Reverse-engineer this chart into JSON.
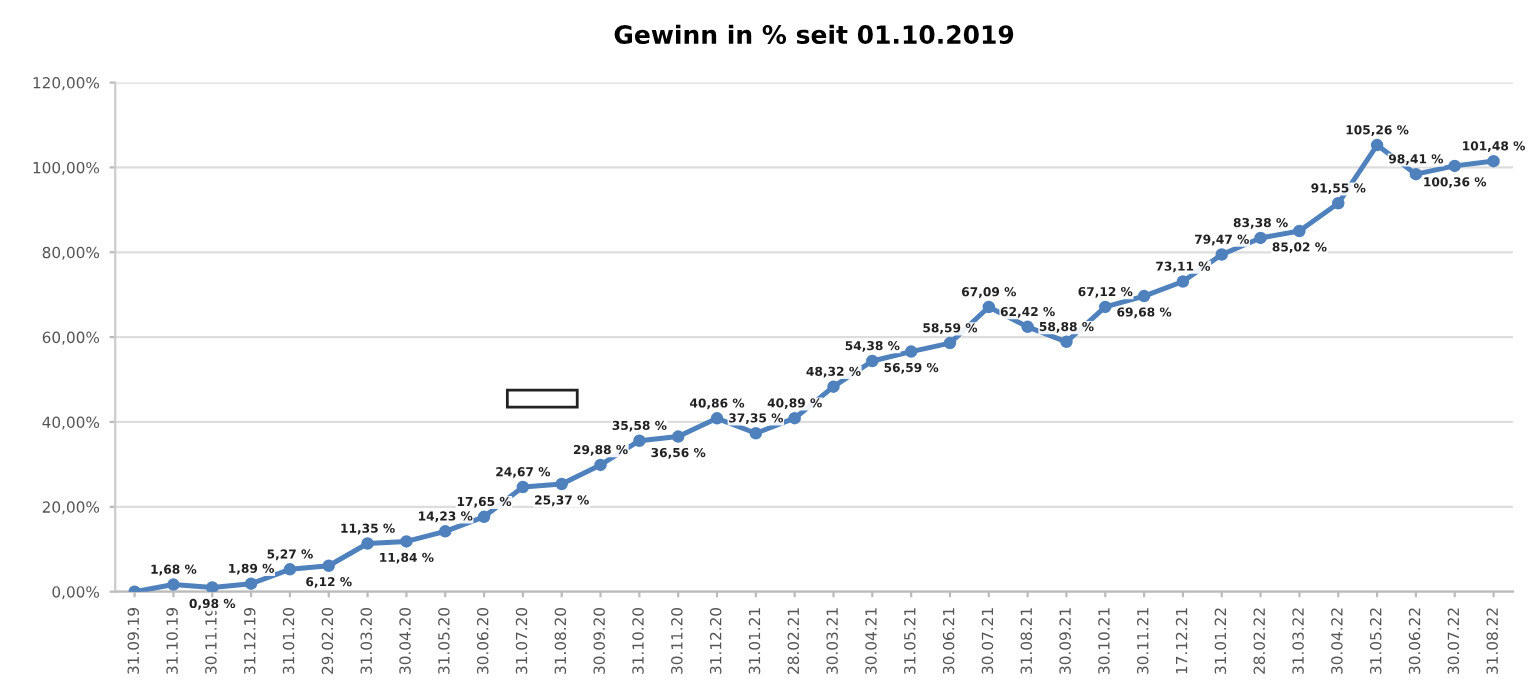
{
  "chart_data": {
    "type": "line",
    "title": "Gewinn in % seit 01.10.2019",
    "categories": [
      "31.09.19",
      "31.10.19",
      "30.11.19",
      "31.12.19",
      "31.01.20",
      "29.02.20",
      "31.03.20",
      "30.04.20",
      "31.05.20",
      "30.06.20",
      "31.07.20",
      "31.08.20",
      "30.09.20",
      "31.10.20",
      "30.11.20",
      "31.12.20",
      "31.01.21",
      "28.02.21",
      "30.03.21",
      "30.04.21",
      "31.05.21",
      "30.06.21",
      "30.07.21",
      "31.08.21",
      "30.09.21",
      "30.10.21",
      "30.11.21",
      "17.12.21",
      "31.01.22",
      "28.02.22",
      "31.03.22",
      "30.04.22",
      "31.05.22",
      "30.06.22",
      "30.07.22",
      "31.08.22"
    ],
    "values": [
      0,
      1.68,
      0.98,
      1.89,
      5.27,
      6.12,
      11.35,
      11.84,
      14.23,
      17.65,
      24.67,
      25.37,
      29.88,
      35.58,
      36.56,
      40.86,
      37.35,
      40.89,
      48.32,
      54.38,
      56.59,
      58.59,
      67.09,
      62.42,
      58.88,
      67.12,
      69.68,
      73.11,
      79.47,
      83.38,
      85.02,
      91.55,
      105.26,
      98.41,
      100.36,
      101.48
    ],
    "value_labels": [
      null,
      "1,68 %",
      "0,98 %",
      "1,89 %",
      "5,27 %",
      "6,12 %",
      "11,35 %",
      "11,84 %",
      "14,23 %",
      "17,65 %",
      "24,67 %",
      "25,37 %",
      "29,88 %",
      "35,58 %",
      "36,56 %",
      "40,86 %",
      "37,35 %",
      "40,89 %",
      "48,32 %",
      "54,38 %",
      "56,59 %",
      "58,59 %",
      "67,09 %",
      "62,42 %",
      "58,88 %",
      "67,12 %",
      "69,68 %",
      "73,11 %",
      "79,47 %",
      "83,38 %",
      "85,02 %",
      "91,55 %",
      "105,26 %",
      "98,41 %",
      "100,36 %",
      "101,48 %"
    ],
    "color": "#4f81bd",
    "marker": "circle",
    "line_style": "solid",
    "grid": "y",
    "ylim": [
      0,
      120
    ],
    "yticks": [
      {
        "value": 0,
        "label": "0,00%"
      },
      {
        "value": 20,
        "label": "20,00%"
      },
      {
        "value": 40,
        "label": "40,00%"
      },
      {
        "value": 60,
        "label": "60,00%"
      },
      {
        "value": 80,
        "label": "80,00%"
      },
      {
        "value": 100,
        "label": "100,00%"
      },
      {
        "value": 120,
        "label": "120,00%"
      }
    ]
  }
}
